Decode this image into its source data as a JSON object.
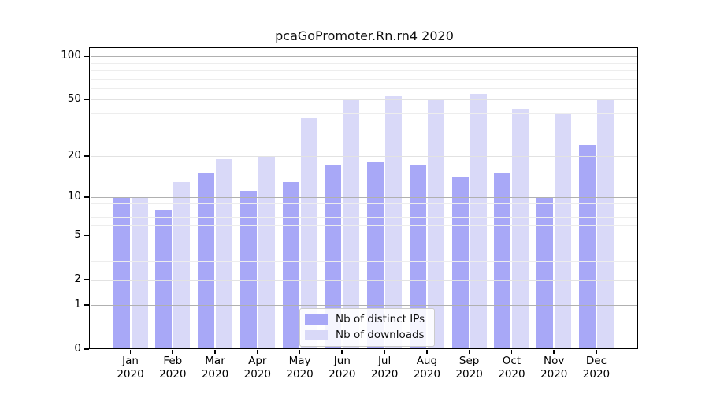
{
  "title": "pcaGoPromoter.Rn.rn4 2020",
  "chart_data": {
    "type": "bar",
    "title": "pcaGoPromoter.Rn.rn4 2020",
    "categories": [
      "Jan",
      "Feb",
      "Mar",
      "Apr",
      "May",
      "Jun",
      "Jul",
      "Aug",
      "Sep",
      "Oct",
      "Nov",
      "Dec"
    ],
    "category_year": "2020",
    "series": [
      {
        "name": "Nb of distinct IPs",
        "color": "#a8a8f7",
        "values": [
          10,
          8,
          15,
          11,
          13,
          17,
          18,
          17,
          14,
          15,
          10,
          24
        ]
      },
      {
        "name": "Nb of downloads",
        "color": "#d9d9f8",
        "values": [
          10,
          13,
          19,
          20,
          37,
          51,
          53,
          51,
          55,
          43,
          40,
          51
        ]
      }
    ],
    "y_axis": {
      "scale": "log1p",
      "ticks": [
        0,
        1,
        2,
        5,
        10,
        20,
        50,
        100
      ],
      "minor_gridlines": [
        3,
        4,
        6,
        7,
        8,
        9,
        30,
        40,
        60,
        70,
        80,
        90
      ],
      "decade_gridlines": [
        1,
        10,
        100
      ],
      "ylim": [
        0,
        114
      ],
      "grid": true
    },
    "legend": {
      "position": "lower-center"
    },
    "colors": {
      "decade_grid": "#b0b0b0",
      "major_grid": "#e2e2e2",
      "minor_grid": "#ededed",
      "spine": "#000000",
      "background": "#ffffff"
    }
  }
}
